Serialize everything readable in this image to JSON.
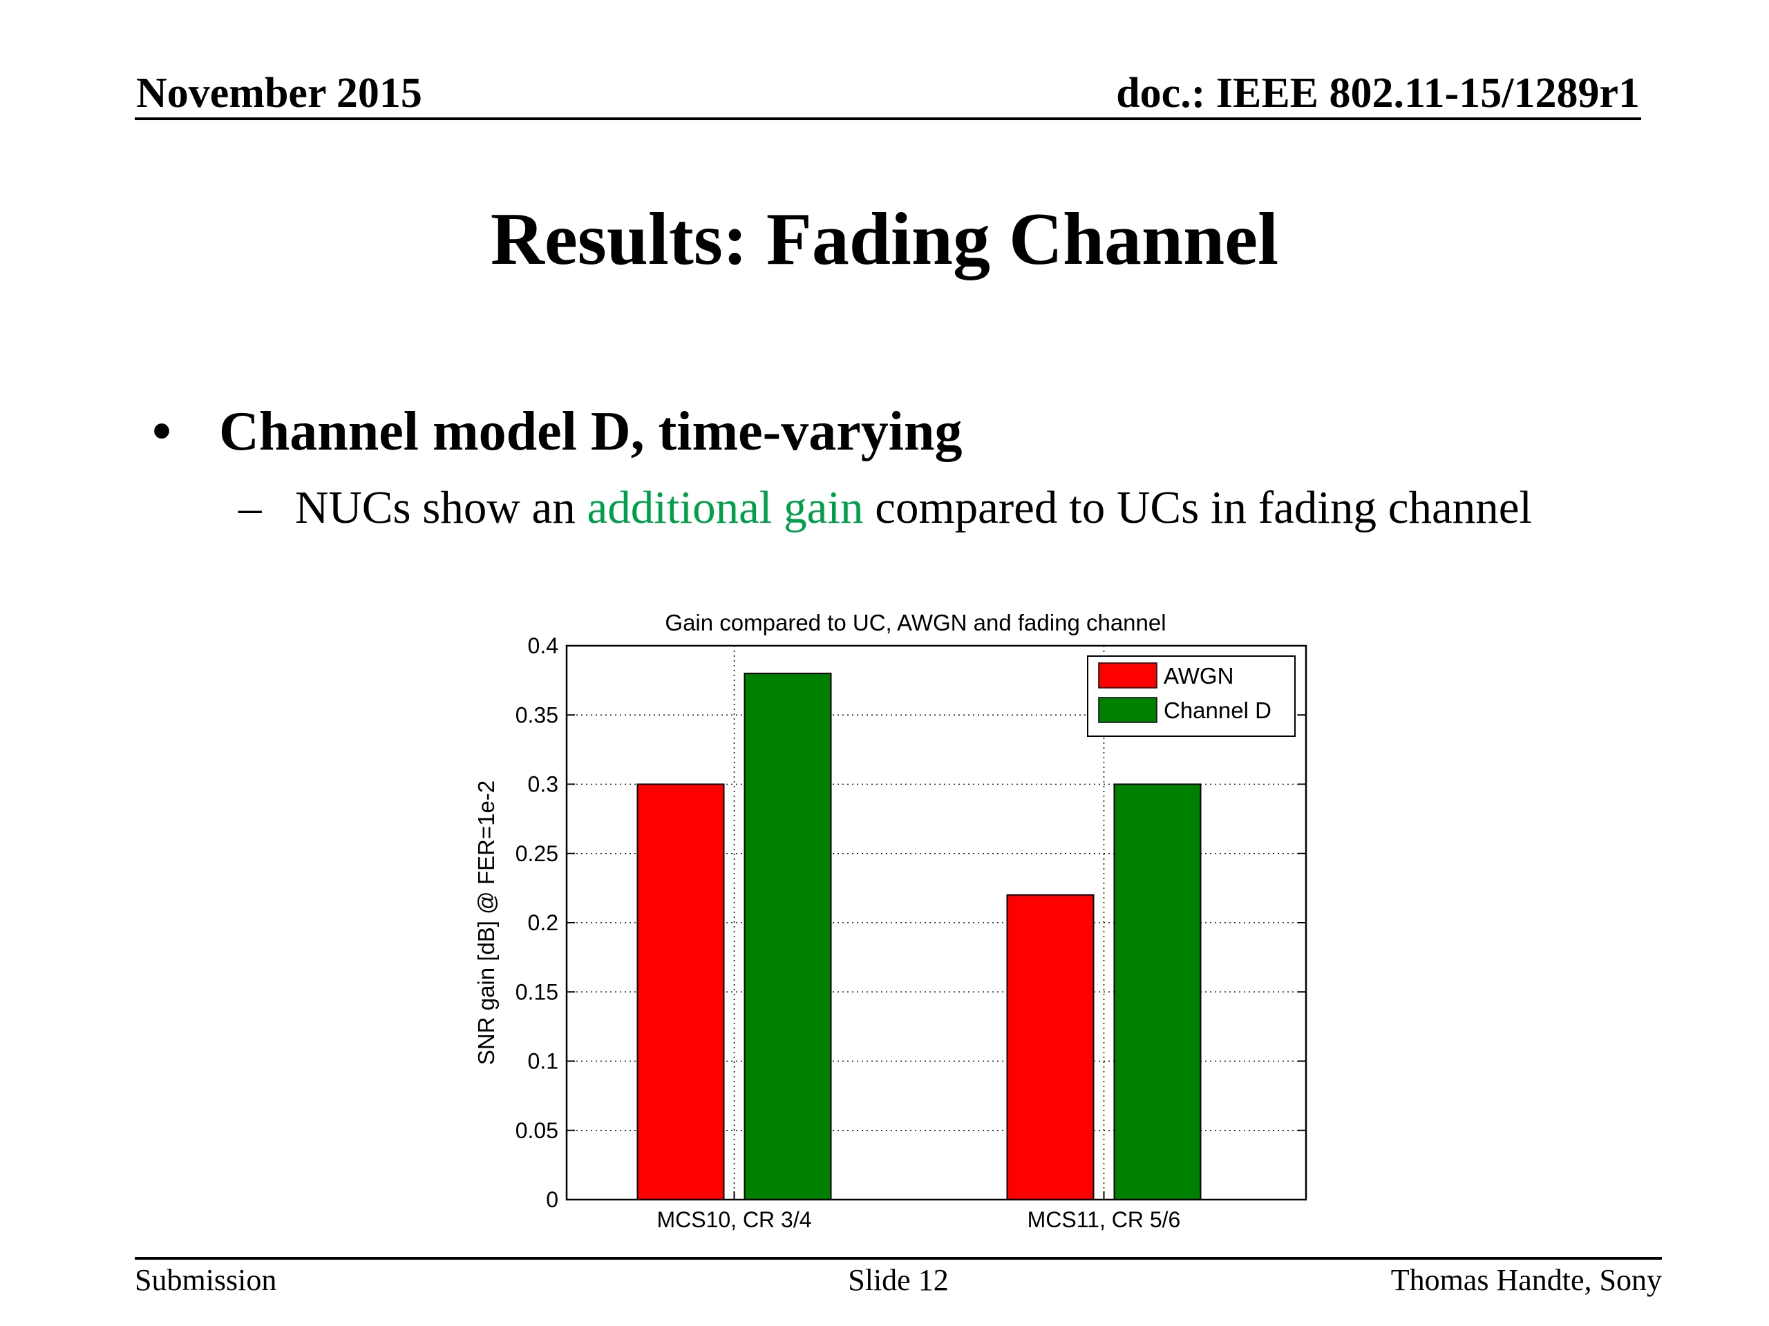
{
  "header": {
    "date": "November 2015",
    "doc": "doc.: IEEE 802.11-15/1289r1"
  },
  "slide": {
    "title": "Results: Fading Channel",
    "bullet": "Channel model D, time-varying",
    "sub_bullet": {
      "before": "NUCs show an ",
      "highlight": "additional gain",
      "after": " compared to UCs in fading channel",
      "highlight_color": "#00a04b"
    }
  },
  "chart_data": {
    "type": "bar",
    "title": "Gain compared to UC, AWGN and fading channel",
    "xlabel": "",
    "ylabel": "SNR gain [dB] @ FER=1e-2",
    "categories": [
      "MCS10, CR 3/4",
      "MCS11, CR 5/6"
    ],
    "series": [
      {
        "name": "AWGN",
        "color": "#ff0000",
        "values": [
          0.3,
          0.22
        ]
      },
      {
        "name": "Channel D",
        "color": "#008000",
        "values": [
          0.38,
          0.3
        ]
      }
    ],
    "ylim": [
      0,
      0.4
    ],
    "yticks": [
      "0",
      "0.05",
      "0.1",
      "0.15",
      "0.2",
      "0.25",
      "0.3",
      "0.35",
      "0.4"
    ],
    "grid": true,
    "legend_position": "top-right"
  },
  "footer": {
    "left": "Submission",
    "center": "Slide 12",
    "right": "Thomas Handte, Sony"
  }
}
